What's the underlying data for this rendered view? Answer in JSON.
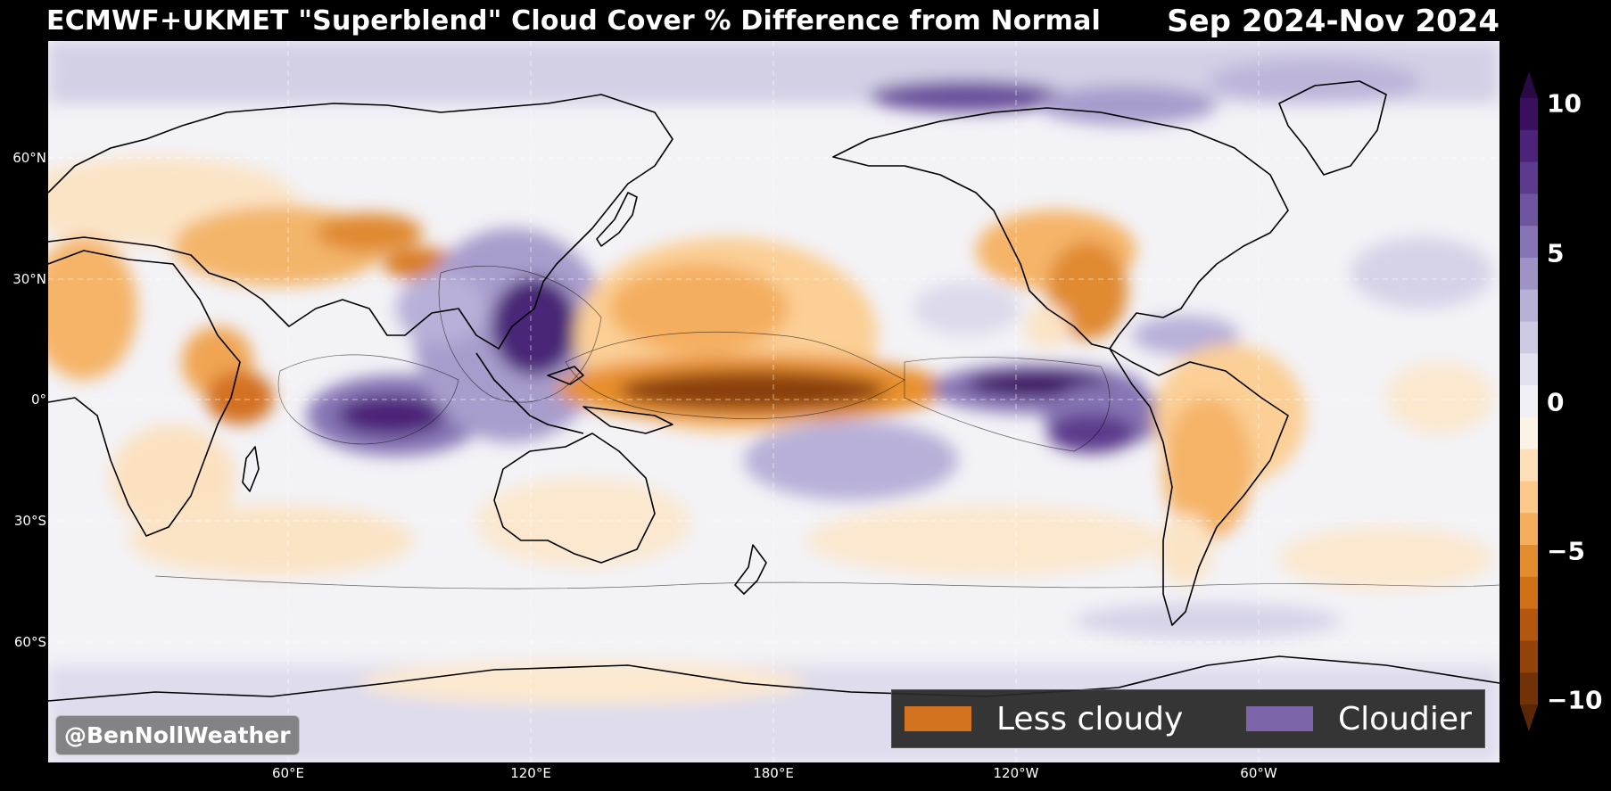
{
  "title": {
    "main": "ECMWF+UKMET \"Superblend\" Cloud Cover % Difference from Normal",
    "period": "Sep 2024-Nov 2024"
  },
  "axes": {
    "lat_labels": [
      "60°N",
      "30°N",
      "0°",
      "30°S",
      "60°S"
    ],
    "lon_labels": [
      "60°E",
      "120°E",
      "180°E",
      "120°W",
      "60°W"
    ]
  },
  "legend": {
    "items": [
      {
        "label": "Less cloudy",
        "color": "#d4731f"
      },
      {
        "label": "Cloudier",
        "color": "#7b64a8"
      }
    ]
  },
  "colorbar": {
    "min": -10,
    "max": 10,
    "ticks": [
      "10",
      "5",
      "0",
      "−5",
      "−10"
    ],
    "colors_top_to_bottom": [
      "#3a0f5e",
      "#4b2378",
      "#5c3a8c",
      "#6f54a0",
      "#8674b4",
      "#9f93c6",
      "#b7b1d6",
      "#cdcae4",
      "#e2e1ee",
      "#f0f0f5",
      "#fbf3e6",
      "#fde0b8",
      "#fcc98a",
      "#f5ae5b",
      "#e38c2e",
      "#cf7017",
      "#b2570d",
      "#934309",
      "#723207"
    ],
    "extend_top": "#2a0a45",
    "extend_bottom": "#5a2806"
  },
  "watermark": "@BenNollWeather"
}
